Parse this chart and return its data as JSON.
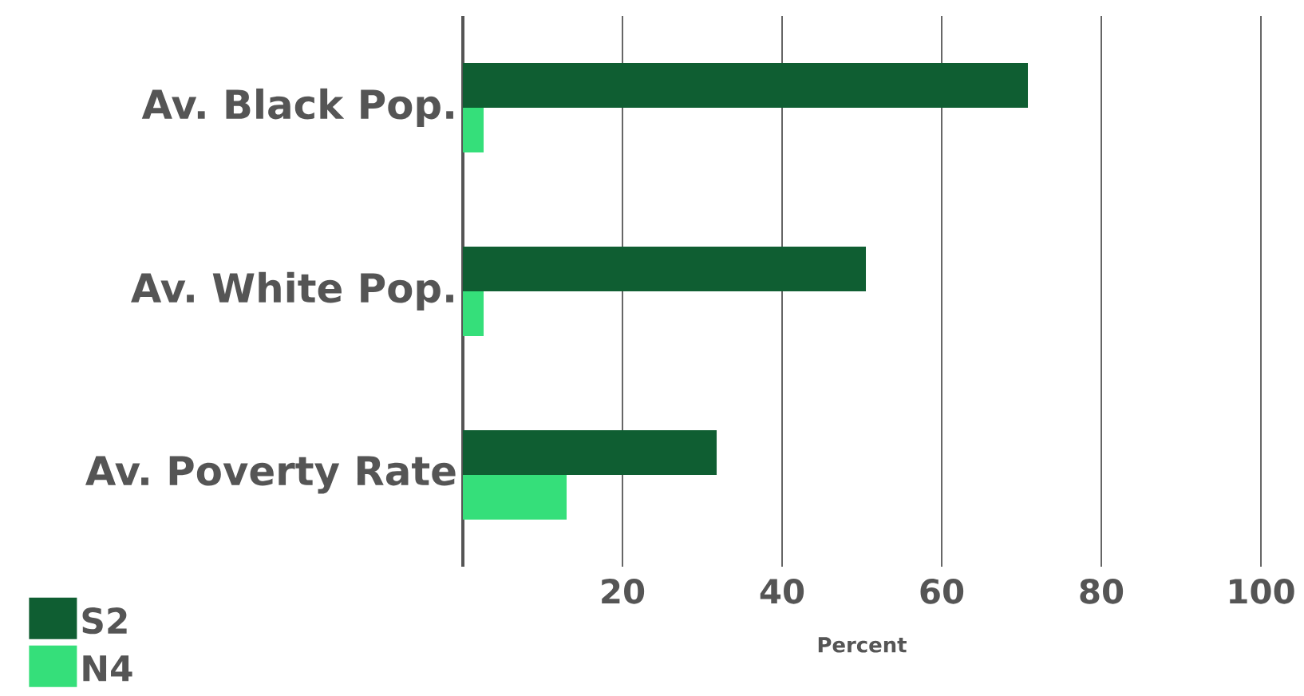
{
  "chart_data": {
    "type": "bar",
    "orientation": "horizontal",
    "categories": [
      "Av. Black Pop.",
      "Av. White Pop.",
      "Av. Poverty Rate"
    ],
    "series": [
      {
        "name": "S2",
        "color": "#0f5e32",
        "values": [
          70.8,
          50.5,
          31.8
        ]
      },
      {
        "name": "N4",
        "color": "#35df7a",
        "values": [
          2.6,
          2.6,
          13
        ]
      }
    ],
    "xlim": [
      0,
      100
    ],
    "xticks": [
      20,
      40,
      60,
      80,
      100
    ],
    "xlabel": "Percent",
    "grid": "x",
    "legend": "bottom left"
  }
}
